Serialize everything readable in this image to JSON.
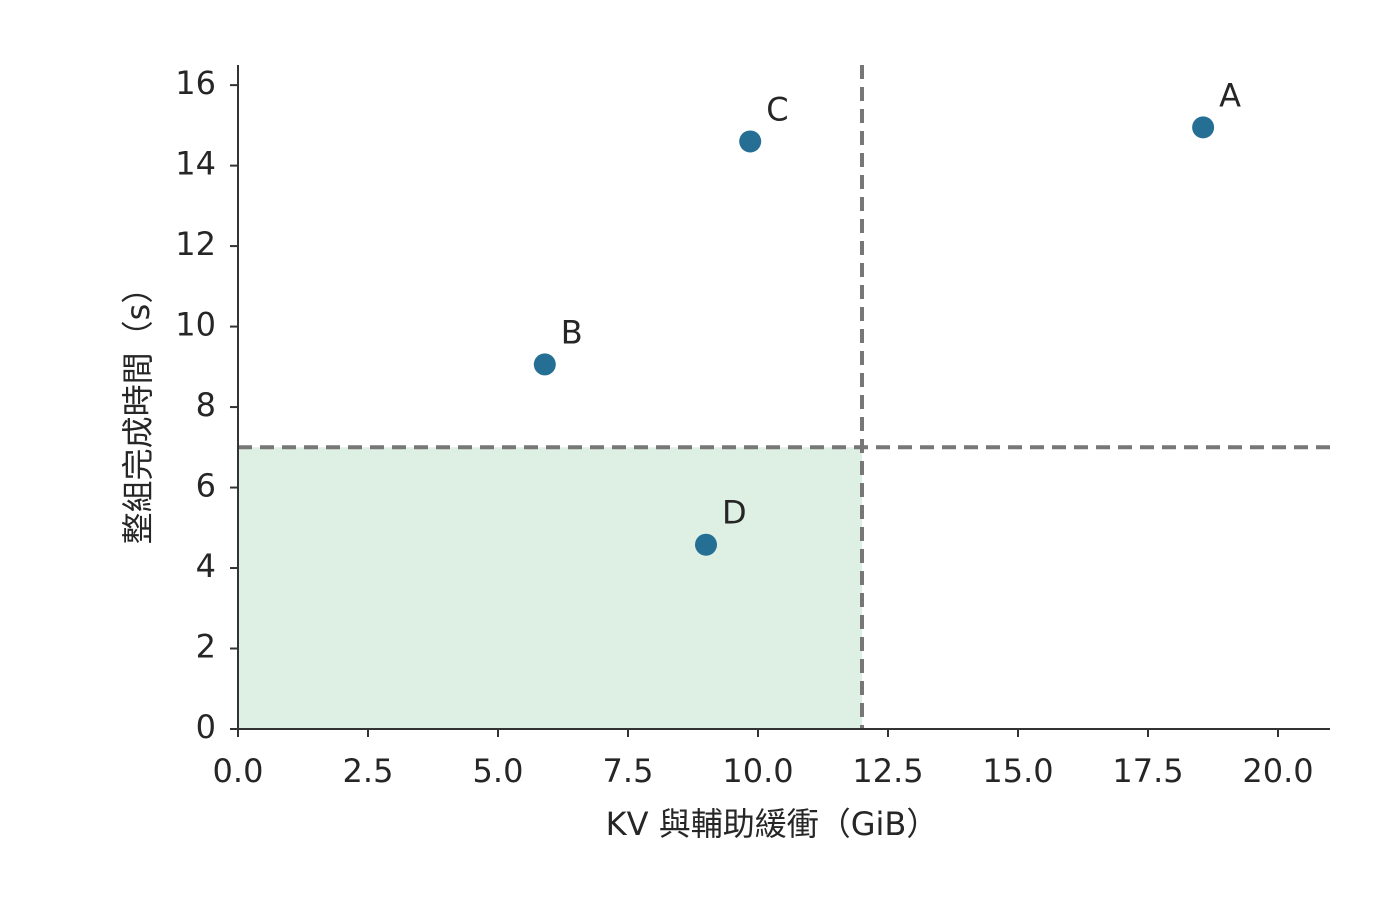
{
  "chart_data": {
    "type": "scatter",
    "x_label": "KV 與輔助緩衝（GiB）",
    "y_label": "整組完成時間（s）",
    "x": [
      18.56,
      5.9,
      9.85,
      9.0
    ],
    "values": [
      14.95,
      9.06,
      14.6,
      4.58
    ],
    "labels": [
      "A",
      "B",
      "C",
      "D"
    ],
    "color": "#256f94",
    "xlim": [
      0,
      21
    ],
    "ylim": [
      0,
      16.5
    ],
    "xticks": [
      {
        "value": 0,
        "label": "0.0"
      },
      {
        "value": 2.5,
        "label": "2.5"
      },
      {
        "value": 5,
        "label": "5.0"
      },
      {
        "value": 7.5,
        "label": "7.5"
      },
      {
        "value": 10,
        "label": "10.0"
      },
      {
        "value": 12.5,
        "label": "12.5"
      },
      {
        "value": 15,
        "label": "15.0"
      },
      {
        "value": 17.5,
        "label": "17.5"
      },
      {
        "value": 20,
        "label": "20.0"
      }
    ],
    "yticks": [
      0,
      2,
      4,
      6,
      8,
      10,
      12,
      14,
      16
    ],
    "threshold_x": 12,
    "threshold_y": 7,
    "threshold_color": "#777777",
    "region_color": "#deefe4"
  }
}
